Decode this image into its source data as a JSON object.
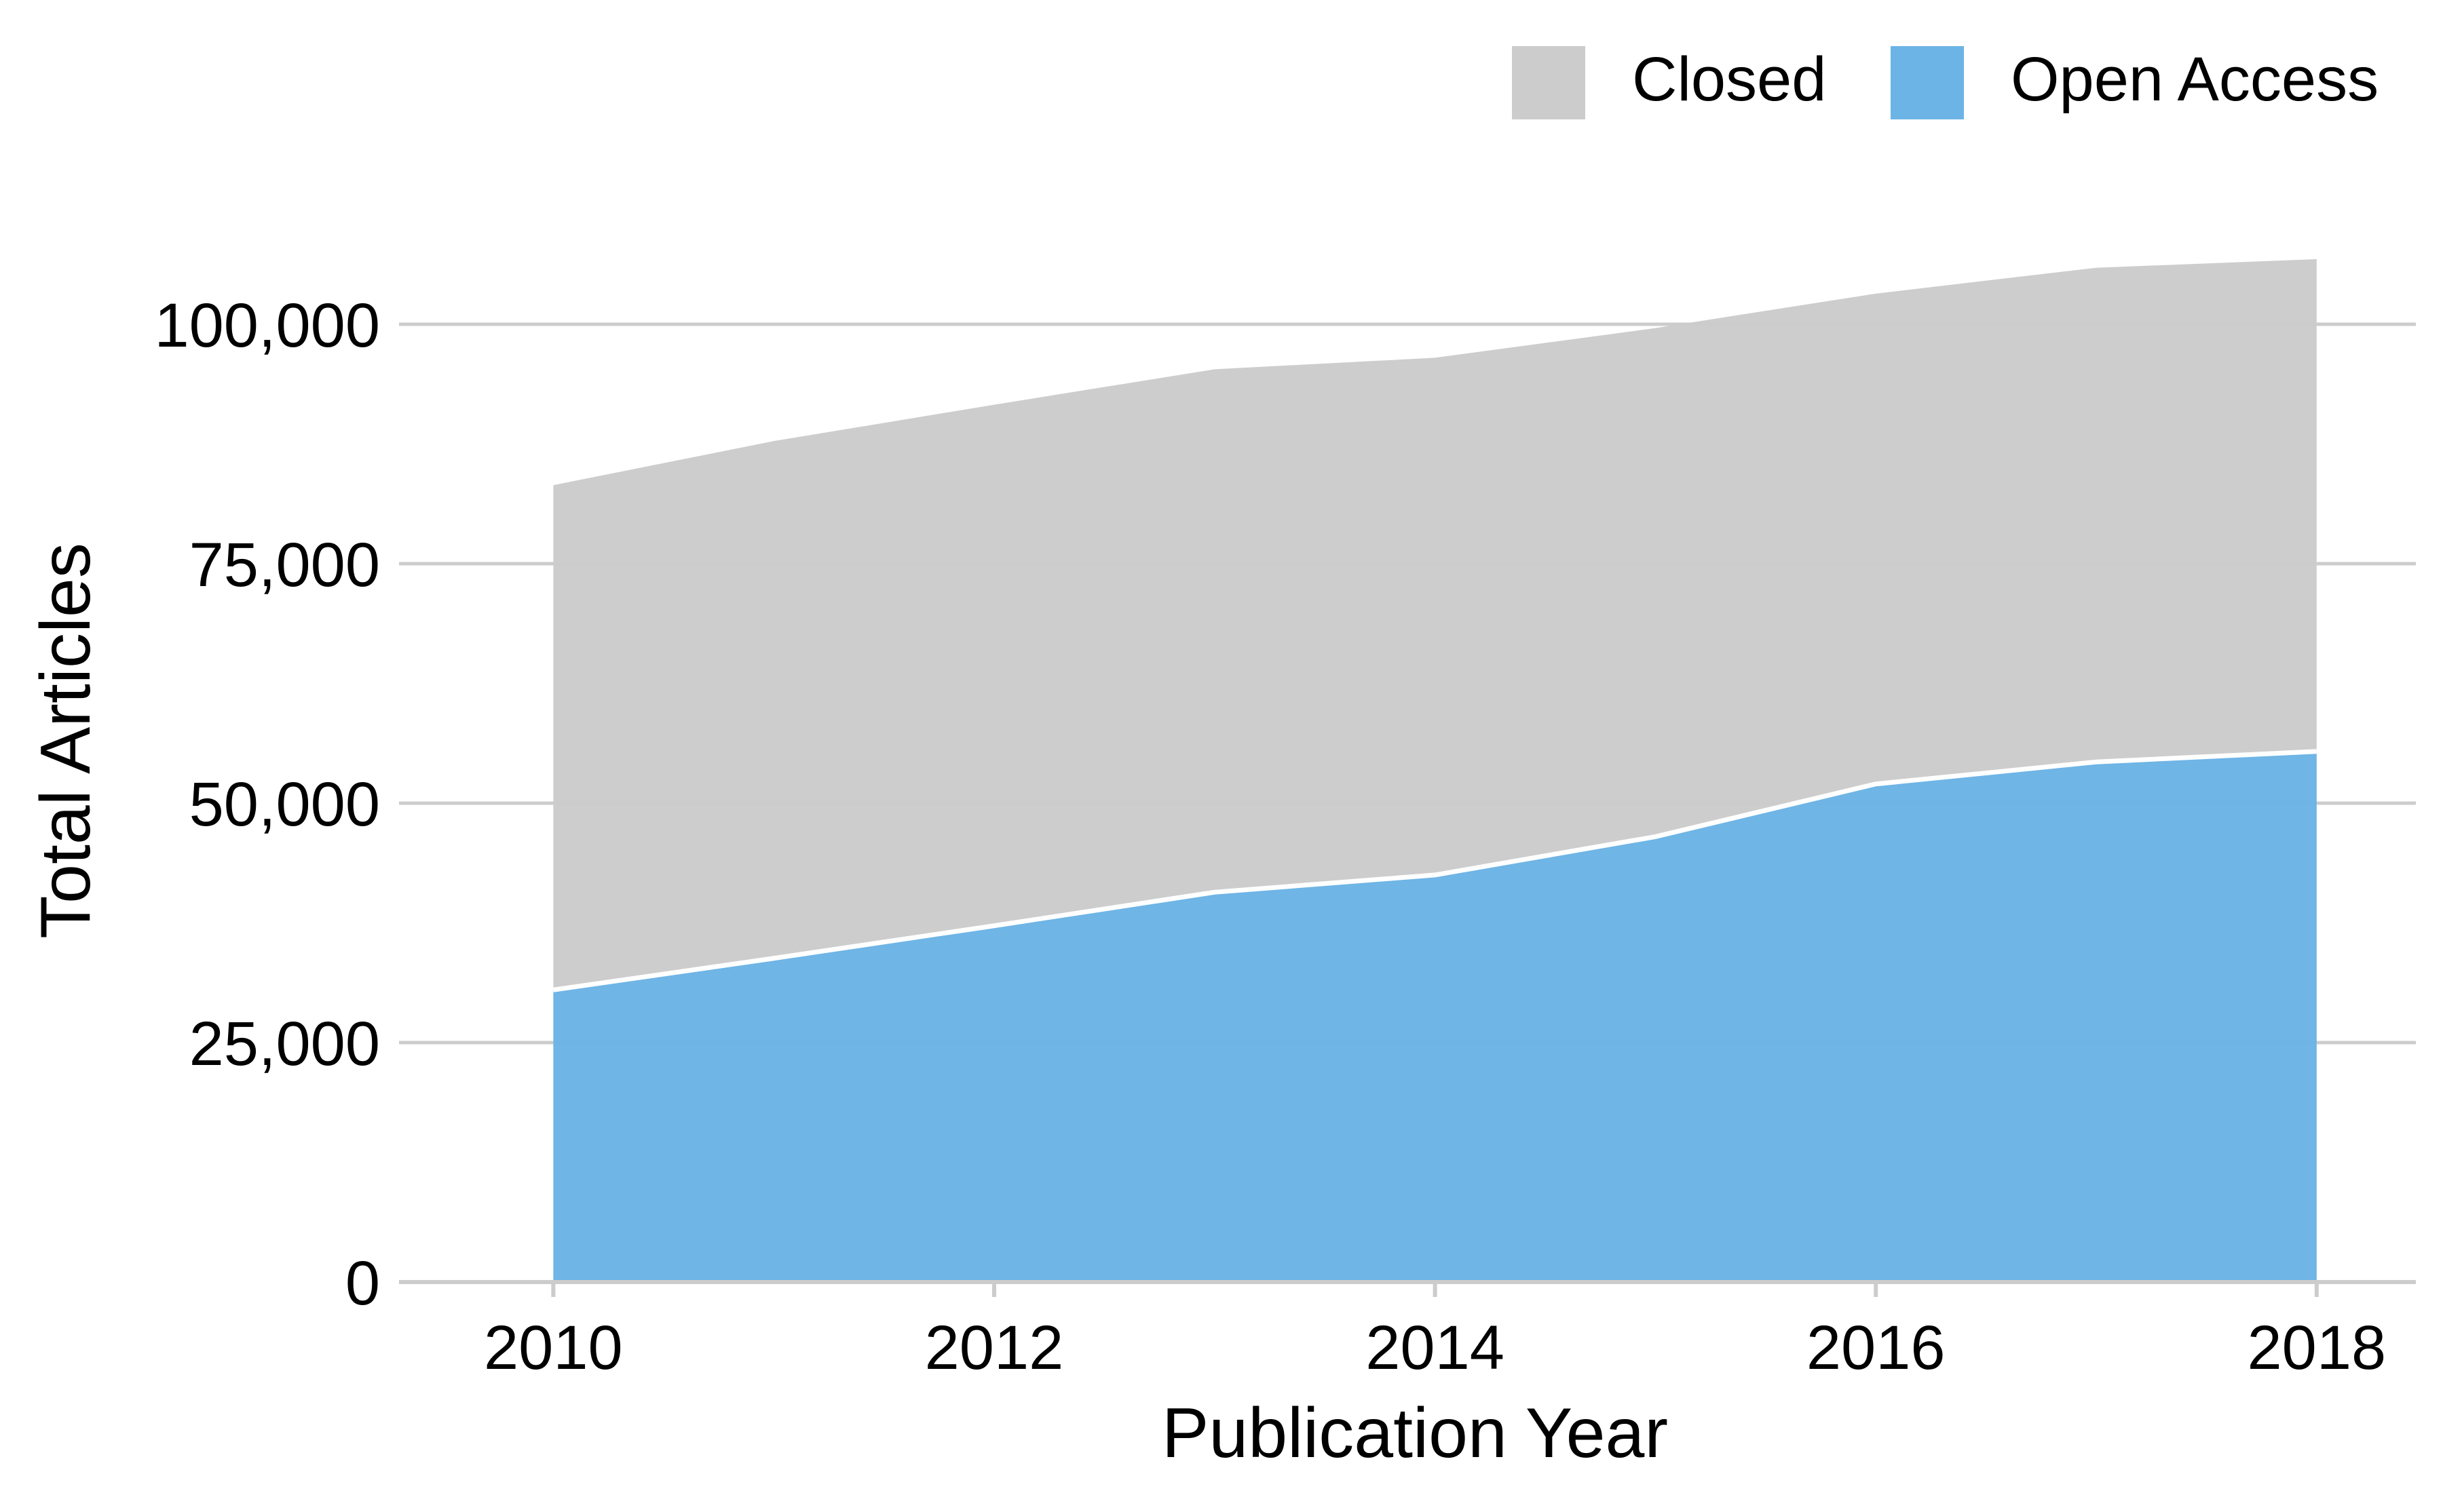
{
  "chart_data": {
    "type": "area",
    "stacked": true,
    "title": "",
    "xlabel": "Publication Year",
    "ylabel": "Total Articles",
    "x": [
      2010,
      2011,
      2012,
      2013,
      2014,
      2015,
      2016,
      2017,
      2018
    ],
    "series": [
      {
        "name": "Open Access",
        "color": "#6CB4E6",
        "values": [
          30500,
          33800,
          37200,
          40700,
          42500,
          46500,
          52000,
          54300,
          55400
        ]
      },
      {
        "name": "Closed",
        "color": "#CCCCCC",
        "values": [
          52700,
          54000,
          54400,
          54600,
          54000,
          53100,
          51200,
          51600,
          51400
        ]
      }
    ],
    "totals": [
      83200,
      87800,
      91600,
      95300,
      96500,
      99600,
      103200,
      105900,
      106800
    ],
    "xlim": [
      2009.3,
      2018.45
    ],
    "ylim": [
      0,
      110000
    ],
    "x_ticks": [
      2010,
      2012,
      2014,
      2016,
      2018
    ],
    "x_tick_labels": [
      "2010",
      "2012",
      "2014",
      "2016",
      "2018"
    ],
    "y_ticks": [
      0,
      25000,
      50000,
      75000,
      100000
    ],
    "y_tick_labels": [
      "0",
      "25,000",
      "50,000",
      "75,000",
      "100,000"
    ],
    "grid": "horizontal",
    "legend": {
      "position": "top-right",
      "entries": [
        "Closed",
        "Open Access"
      ]
    }
  }
}
